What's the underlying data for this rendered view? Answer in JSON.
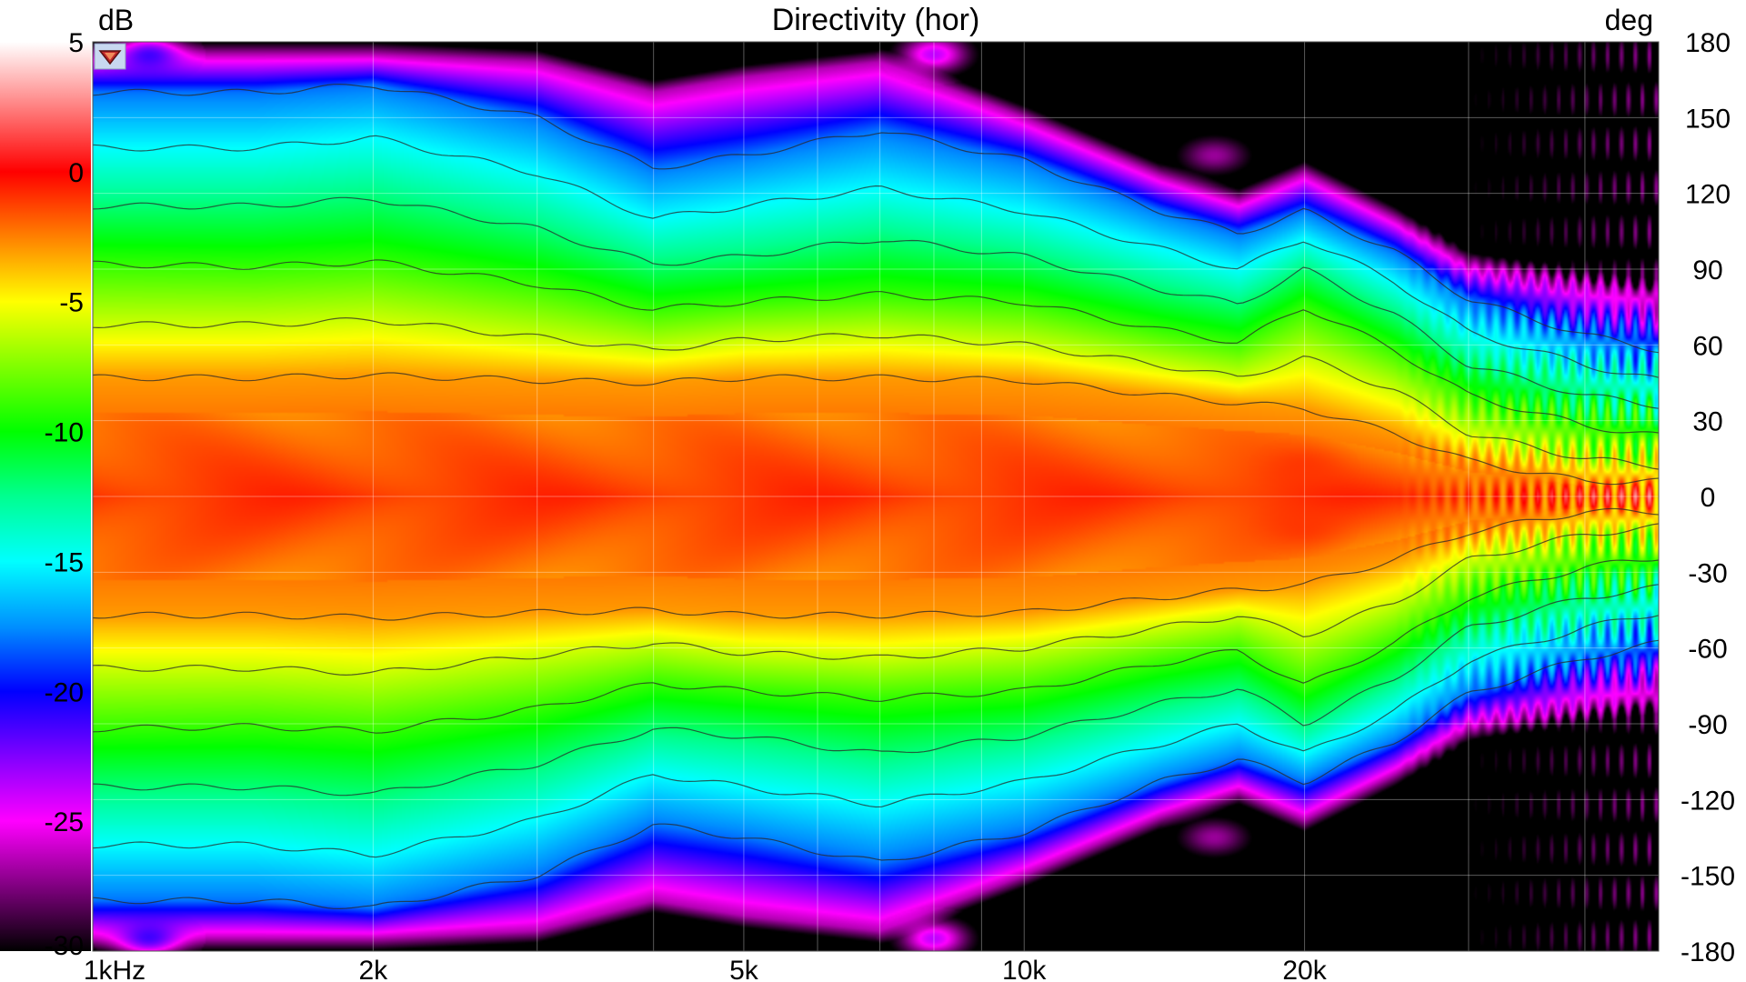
{
  "chart_data": {
    "type": "heatmap",
    "title": "Directivity (hor)",
    "colorbar_unit": "dB",
    "right_axis_unit": "deg",
    "colorbar": {
      "range": [
        -30,
        5
      ],
      "ticks": [
        {
          "value": 5,
          "label": "5"
        },
        {
          "value": 0,
          "label": "0"
        },
        {
          "value": -5,
          "label": "-5"
        },
        {
          "value": -10,
          "label": "-10"
        },
        {
          "value": -15,
          "label": "-15"
        },
        {
          "value": -20,
          "label": "-20"
        },
        {
          "value": -25,
          "label": "-25"
        },
        {
          "value": -30,
          "label": "-30"
        }
      ],
      "stops": [
        {
          "value": 5,
          "color": "#ffffff"
        },
        {
          "value": 3,
          "color": "#ff9a9a"
        },
        {
          "value": 0,
          "color": "#ff0000"
        },
        {
          "value": -2.5,
          "color": "#ff8000"
        },
        {
          "value": -5,
          "color": "#ffff00"
        },
        {
          "value": -7.5,
          "color": "#80ff00"
        },
        {
          "value": -10,
          "color": "#00ff00"
        },
        {
          "value": -12.5,
          "color": "#00ff90"
        },
        {
          "value": -15,
          "color": "#00ffff"
        },
        {
          "value": -17.5,
          "color": "#0090ff"
        },
        {
          "value": -20,
          "color": "#0000ff"
        },
        {
          "value": -22.5,
          "color": "#8000ff"
        },
        {
          "value": -25,
          "color": "#ff00ff"
        },
        {
          "value": -27.5,
          "color": "#800080"
        },
        {
          "value": -30,
          "color": "#000000"
        }
      ]
    },
    "x_axis": {
      "scale": "log",
      "unit": "Hz",
      "range": [
        1000,
        48000
      ],
      "ticks": [
        {
          "value": 1000,
          "label": "1kHz"
        },
        {
          "value": 2000,
          "label": "2k"
        },
        {
          "value": 5000,
          "label": "5k"
        },
        {
          "value": 10000,
          "label": "10k"
        },
        {
          "value": 20000,
          "label": "20k"
        }
      ],
      "gridlines": [
        1000,
        2000,
        3000,
        4000,
        5000,
        6000,
        7000,
        8000,
        9000,
        10000,
        20000,
        30000,
        40000
      ]
    },
    "y_axis": {
      "unit": "deg",
      "range": [
        -180,
        180
      ],
      "ticks": [
        180,
        150,
        120,
        90,
        60,
        30,
        0,
        -30,
        -60,
        -90,
        -120,
        -150,
        -180
      ]
    },
    "contour_levels_db": [
      -3,
      -6,
      -9,
      -12,
      -15,
      -18
    ],
    "contour_halfwidth_deg": {
      "freqs_hz": [
        1000,
        1500,
        2000,
        3000,
        4000,
        5000,
        7000,
        10000,
        14000,
        17000,
        20000,
        25000,
        30000,
        40000,
        48000
      ],
      "level_-3": [
        47,
        47,
        48,
        46,
        45,
        47,
        47,
        46,
        40,
        37,
        35,
        25,
        14,
        6,
        6
      ],
      "level_-6": [
        68,
        68,
        70,
        63,
        58,
        62,
        64,
        60,
        52,
        47,
        55,
        42,
        25,
        15,
        12
      ],
      "level_-9": [
        92,
        91,
        93,
        84,
        74,
        77,
        80,
        77,
        66,
        61,
        75,
        58,
        40,
        28,
        24
      ],
      "level_-12": [
        115,
        115,
        118,
        106,
        92,
        95,
        102,
        95,
        82,
        76,
        90,
        72,
        52,
        40,
        36
      ],
      "level_-15": [
        138,
        138,
        142,
        128,
        110,
        115,
        122,
        113,
        98,
        90,
        102,
        85,
        65,
        52,
        46
      ],
      "level_-18": [
        160,
        160,
        163,
        150,
        130,
        135,
        145,
        133,
        113,
        104,
        113,
        97,
        78,
        64,
        58
      ]
    },
    "magenta_edge_halfwidth_deg": [
      175,
      175,
      175,
      172,
      160,
      166,
      172,
      150,
      127,
      117,
      128,
      110,
      92,
      84,
      80
    ],
    "hot_spots": [
      {
        "freq_hz": 8000,
        "angle_deg": 175,
        "db": -22
      },
      {
        "freq_hz": 8000,
        "angle_deg": -175,
        "db": -22
      },
      {
        "freq_hz": 1150,
        "angle_deg": 175,
        "db": -20
      },
      {
        "freq_hz": 1150,
        "angle_deg": -175,
        "db": -20
      },
      {
        "freq_hz": 16000,
        "angle_deg": 135,
        "db": -26
      },
      {
        "freq_hz": 16000,
        "angle_deg": -135,
        "db": -26
      },
      {
        "freq_hz": 20000,
        "angle_deg": 12,
        "db": -1
      },
      {
        "freq_hz": 20000,
        "angle_deg": -12,
        "db": -1
      }
    ]
  }
}
